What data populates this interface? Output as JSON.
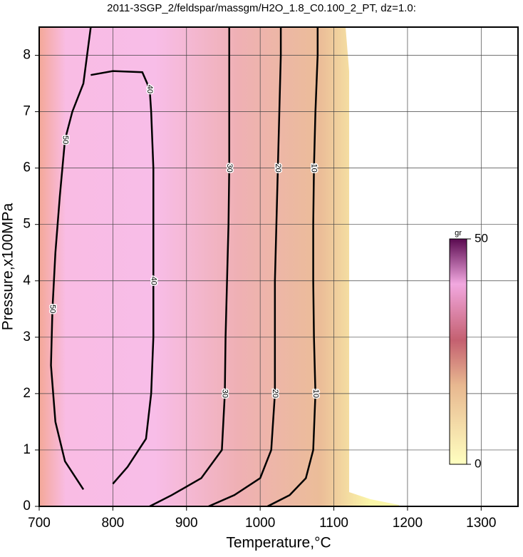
{
  "chart_data": {
    "type": "contour",
    "title": "2011-3SGP_2/feldspar/massgm/H2O_1.8_C0.100_2_PT, dz=1.0:",
    "x_label": "Temperature,°C",
    "y_label": "Pressure,x100MPa",
    "xlim": [
      700,
      1350
    ],
    "ylim": [
      0,
      8.5
    ],
    "xticks": [
      700,
      800,
      900,
      1000,
      1100,
      1200,
      1300
    ],
    "yticks": [
      0,
      1,
      2,
      3,
      4,
      5,
      6,
      7,
      8
    ],
    "grid": true,
    "contours": [
      {
        "level": 10,
        "x": [
          1010,
          1040,
          1062,
          1072,
          1075,
          1073,
          1072,
          1072,
          1073,
          1075,
          1078,
          1078
        ],
        "y": [
          0,
          0.2,
          0.5,
          1,
          2,
          3,
          4,
          5,
          6,
          7,
          8,
          8.5
        ]
      },
      {
        "level": 20,
        "x": [
          930,
          965,
          1000,
          1015,
          1020,
          1020,
          1020,
          1022,
          1024,
          1026,
          1028,
          1028
        ],
        "y": [
          0,
          0.2,
          0.5,
          1,
          2,
          3,
          4,
          5,
          6,
          7,
          8,
          8.5
        ]
      },
      {
        "level": 30,
        "x": [
          850,
          880,
          920,
          948,
          952,
          953,
          955,
          957,
          958,
          958,
          958,
          958
        ],
        "y": [
          0,
          0.2,
          0.5,
          1,
          2,
          3,
          4,
          5,
          6,
          7,
          8,
          8.5
        ]
      },
      {
        "level": 40,
        "x": [
          800,
          820,
          845,
          852,
          855,
          855,
          855,
          855,
          852,
          850,
          840,
          800,
          770
        ],
        "y": [
          0.4,
          0.7,
          1.2,
          2,
          3,
          4,
          5,
          6,
          7,
          7.4,
          7.7,
          7.72,
          7.65
        ]
      },
      {
        "level": 50,
        "x": [
          760,
          735,
          722,
          716,
          718,
          722,
          728,
          735,
          745,
          760,
          770
        ],
        "y": [
          0.3,
          0.8,
          1.5,
          2.5,
          3.5,
          4.5,
          5.5,
          6.5,
          7,
          7.5,
          8.5
        ]
      }
    ],
    "colorbar": {
      "label": "gr",
      "lim": [
        0,
        50
      ],
      "ticks": [
        0,
        50
      ]
    }
  }
}
